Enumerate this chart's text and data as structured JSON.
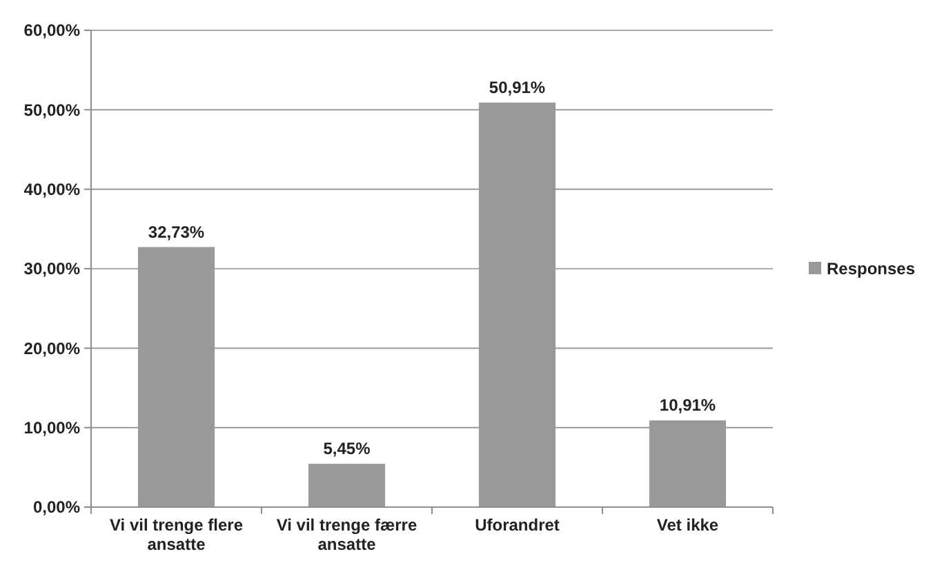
{
  "chart_data": {
    "type": "bar",
    "categories": [
      "Vi vil trenge flere ansatte",
      "Vi vil trenge færre ansatte",
      "Uforandret",
      "Vet ikke"
    ],
    "series": [
      {
        "name": "Responses",
        "color": "#999999",
        "values": [
          32.73,
          5.45,
          50.91,
          10.91
        ],
        "value_labels": [
          "32,73%",
          "5,45%",
          "50,91%",
          "10,91%"
        ]
      }
    ],
    "ylim": [
      0,
      60
    ],
    "yticks": [
      {
        "value": 0,
        "label": "0,00%"
      },
      {
        "value": 10,
        "label": "10,00%"
      },
      {
        "value": 20,
        "label": "20,00%"
      },
      {
        "value": 30,
        "label": "30,00%"
      },
      {
        "value": 40,
        "label": "40,00%"
      },
      {
        "value": 50,
        "label": "50,00%"
      },
      {
        "value": 60,
        "label": "60,00%"
      }
    ],
    "grid": "y",
    "legend": "right"
  }
}
